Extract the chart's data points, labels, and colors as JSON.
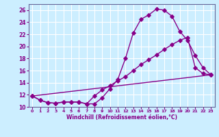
{
  "xlabel": "Windchill (Refroidissement éolien,°C)",
  "bg_color": "#cceeff",
  "grid_color": "#ffffff",
  "line_color": "#880088",
  "xlim": [
    -0.5,
    23.5
  ],
  "ylim": [
    10,
    27
  ],
  "yticks": [
    10,
    12,
    14,
    16,
    18,
    20,
    22,
    24,
    26
  ],
  "xticks": [
    0,
    1,
    2,
    3,
    4,
    5,
    6,
    7,
    8,
    9,
    10,
    11,
    12,
    13,
    14,
    15,
    16,
    17,
    18,
    19,
    20,
    21,
    22,
    23
  ],
  "line1_x": [
    0,
    1,
    2,
    3,
    4,
    5,
    6,
    7,
    8,
    9,
    10,
    11,
    12,
    13,
    14,
    15,
    16,
    17,
    18,
    19,
    20,
    21,
    22,
    23
  ],
  "line1_y": [
    11.8,
    11.1,
    10.7,
    10.6,
    10.8,
    10.8,
    10.8,
    10.5,
    10.5,
    11.5,
    13.0,
    14.5,
    18.0,
    22.2,
    24.5,
    25.2,
    26.2,
    26.0,
    25.0,
    22.5,
    21.0,
    18.5,
    16.5,
    15.3
  ],
  "line2_x": [
    0,
    1,
    2,
    3,
    4,
    5,
    6,
    7,
    8,
    9,
    10,
    11,
    12,
    13,
    14,
    15,
    16,
    17,
    18,
    19,
    20,
    21,
    22,
    23
  ],
  "line2_y": [
    11.8,
    11.1,
    10.7,
    10.6,
    10.8,
    10.8,
    10.8,
    10.5,
    11.8,
    12.8,
    13.5,
    14.3,
    15.0,
    16.0,
    17.0,
    17.8,
    18.6,
    19.5,
    20.3,
    21.0,
    21.5,
    16.5,
    15.5,
    15.3
  ],
  "line3_x": [
    0,
    23
  ],
  "line3_y": [
    11.8,
    15.3
  ]
}
